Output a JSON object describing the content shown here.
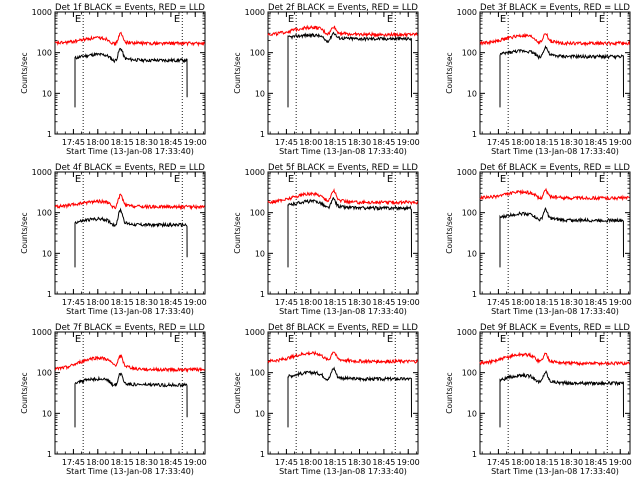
{
  "yticks": [
    "1",
    "10",
    "100",
    "1000"
  ],
  "xticks": [
    "17:45",
    "18:00",
    "18:15",
    "18:30",
    "18:45",
    "19:00"
  ],
  "xlabel": "Start Time (13-Jan-08 17:33:40)",
  "ylabel": "Counts/sec",
  "marker": "E",
  "colors": {
    "events": "#000000",
    "lld": "#ff0000"
  },
  "chart_data": [
    {
      "type": "line",
      "title": "Det 1f BLACK = Events, RED = LLD",
      "yscale": "log",
      "ylim": [
        1,
        1000
      ],
      "xlim": [
        "17:33:40",
        "19:06:00"
      ],
      "markers_at": [
        "17:51",
        "18:52"
      ],
      "series": [
        {
          "name": "Events",
          "color": "#000000",
          "start": "17:46",
          "end": "18:55",
          "base": 65,
          "bump": 90,
          "spike": 120
        },
        {
          "name": "LLD",
          "color": "#ff0000",
          "start": "17:33",
          "end": "19:06",
          "base": 170,
          "bump": 230,
          "spike": 280
        }
      ]
    },
    {
      "type": "line",
      "title": "Det 2f BLACK = Events, RED = LLD",
      "yscale": "log",
      "ylim": [
        1,
        1000
      ],
      "xlim": [
        "17:33:40",
        "19:06:00"
      ],
      "markers_at": [
        "17:51",
        "18:52"
      ],
      "series": [
        {
          "name": "Events",
          "color": "#000000",
          "start": "17:46",
          "end": "19:02",
          "base": 220,
          "bump": 270,
          "spike": 300
        },
        {
          "name": "LLD",
          "color": "#ff0000",
          "start": "17:33",
          "end": "19:06",
          "base": 280,
          "bump": 420,
          "spike": 400
        }
      ]
    },
    {
      "type": "line",
      "title": "Det 3f BLACK = Events, RED = LLD",
      "yscale": "log",
      "ylim": [
        1,
        1000
      ],
      "xlim": [
        "17:33:40",
        "19:06:00"
      ],
      "markers_at": [
        "17:51",
        "18:52"
      ],
      "series": [
        {
          "name": "Events",
          "color": "#000000",
          "start": "17:46",
          "end": "19:02",
          "base": 80,
          "bump": 110,
          "spike": 130
        },
        {
          "name": "LLD",
          "color": "#ff0000",
          "start": "17:33",
          "end": "19:06",
          "base": 170,
          "bump": 260,
          "spike": 270
        }
      ]
    },
    {
      "type": "line",
      "title": "Det 4f BLACK = Events, RED = LLD",
      "yscale": "log",
      "ylim": [
        1,
        1000
      ],
      "xlim": [
        "17:33:40",
        "19:06:00"
      ],
      "markers_at": [
        "17:51",
        "18:52"
      ],
      "series": [
        {
          "name": "Events",
          "color": "#000000",
          "start": "17:46",
          "end": "18:55",
          "base": 50,
          "bump": 70,
          "spike": 110
        },
        {
          "name": "LLD",
          "color": "#ff0000",
          "start": "17:33",
          "end": "19:06",
          "base": 140,
          "bump": 190,
          "spike": 260
        }
      ]
    },
    {
      "type": "line",
      "title": "Det 5f BLACK = Events, RED = LLD",
      "yscale": "log",
      "ylim": [
        1,
        1000
      ],
      "xlim": [
        "17:33:40",
        "19:06:00"
      ],
      "markers_at": [
        "17:51",
        "18:52"
      ],
      "series": [
        {
          "name": "Events",
          "color": "#000000",
          "start": "17:46",
          "end": "19:02",
          "base": 130,
          "bump": 190,
          "spike": 200
        },
        {
          "name": "LLD",
          "color": "#ff0000",
          "start": "17:33",
          "end": "19:06",
          "base": 180,
          "bump": 290,
          "spike": 320
        }
      ]
    },
    {
      "type": "line",
      "title": "Det 6f BLACK = Events, RED = LLD",
      "yscale": "log",
      "ylim": [
        1,
        1000
      ],
      "xlim": [
        "17:33:40",
        "19:06:00"
      ],
      "markers_at": [
        "17:51",
        "18:52"
      ],
      "series": [
        {
          "name": "Events",
          "color": "#000000",
          "start": "17:46",
          "end": "19:02",
          "base": 65,
          "bump": 95,
          "spike": 110
        },
        {
          "name": "LLD",
          "color": "#ff0000",
          "start": "17:33",
          "end": "19:06",
          "base": 230,
          "bump": 320,
          "spike": 330
        }
      ]
    },
    {
      "type": "line",
      "title": "Det 7f BLACK = Events, RED = LLD",
      "yscale": "log",
      "ylim": [
        1,
        1000
      ],
      "xlim": [
        "17:33:40",
        "19:06:00"
      ],
      "markers_at": [
        "17:51",
        "18:52"
      ],
      "series": [
        {
          "name": "Events",
          "color": "#000000",
          "start": "17:46",
          "end": "18:55",
          "base": 50,
          "bump": 70,
          "spike": 90
        },
        {
          "name": "LLD",
          "color": "#ff0000",
          "start": "17:33",
          "end": "19:06",
          "base": 120,
          "bump": 230,
          "spike": 220
        }
      ]
    },
    {
      "type": "line",
      "title": "Det 8f BLACK = Events, RED = LLD",
      "yscale": "log",
      "ylim": [
        1,
        1000
      ],
      "xlim": [
        "17:33:40",
        "19:06:00"
      ],
      "markers_at": [
        "17:51",
        "18:52"
      ],
      "series": [
        {
          "name": "Events",
          "color": "#000000",
          "start": "17:46",
          "end": "19:02",
          "base": 70,
          "bump": 100,
          "spike": 120
        },
        {
          "name": "LLD",
          "color": "#ff0000",
          "start": "17:33",
          "end": "19:06",
          "base": 190,
          "bump": 300,
          "spike": 300
        }
      ]
    },
    {
      "type": "line",
      "title": "Det 9f BLACK = Events, RED = LLD",
      "yscale": "log",
      "ylim": [
        1,
        1000
      ],
      "xlim": [
        "17:33:40",
        "19:06:00"
      ],
      "markers_at": [
        "17:51",
        "18:52"
      ],
      "series": [
        {
          "name": "Events",
          "color": "#000000",
          "start": "17:46",
          "end": "19:02",
          "base": 55,
          "bump": 85,
          "spike": 95
        },
        {
          "name": "LLD",
          "color": "#ff0000",
          "start": "17:33",
          "end": "19:06",
          "base": 170,
          "bump": 280,
          "spike": 260
        }
      ]
    }
  ]
}
